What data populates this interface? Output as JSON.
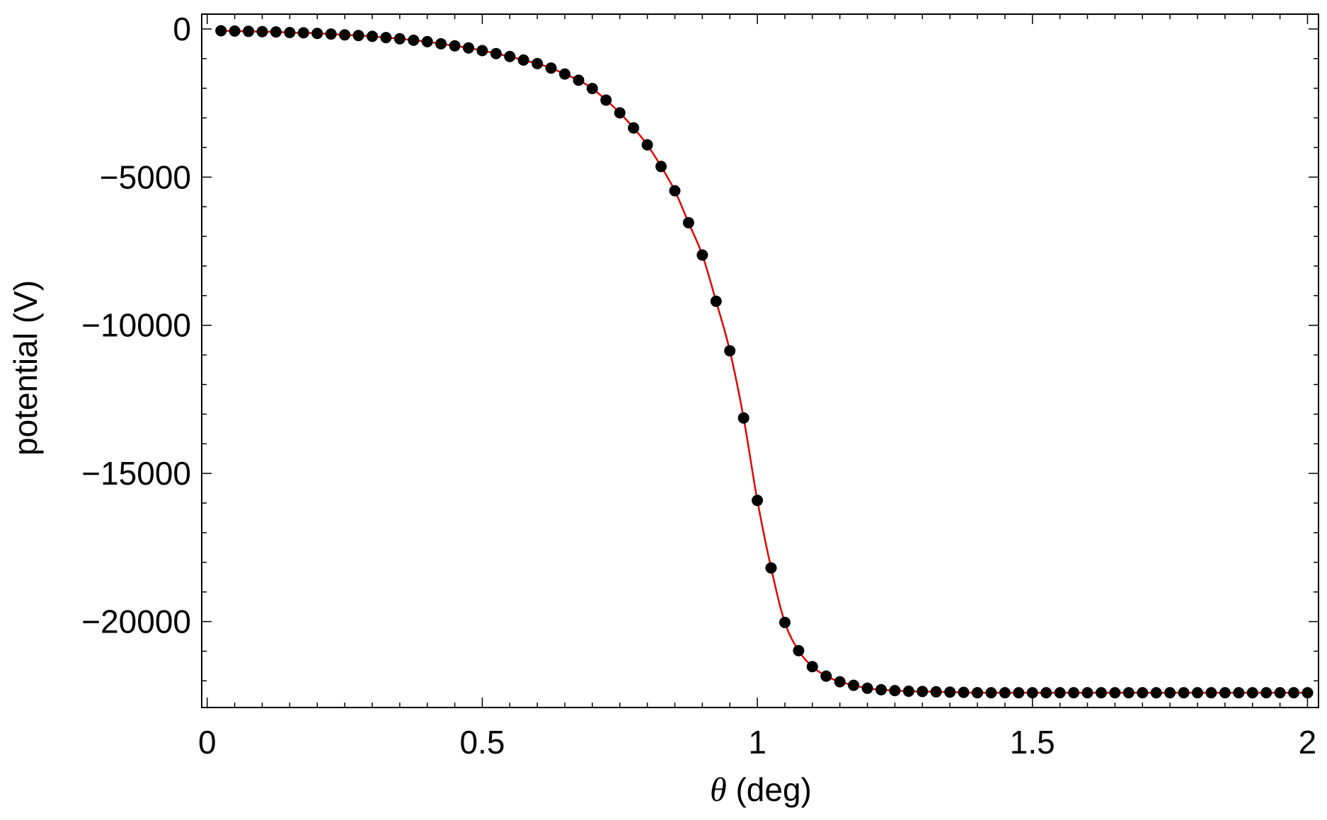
{
  "chart_data": {
    "type": "scatter",
    "xlabel_symbol": "θ",
    "xlabel_unit": " (deg)",
    "ylabel": "potential (V)",
    "xlim": [
      -0.01,
      2.02
    ],
    "ylim": [
      -22900,
      500
    ],
    "xticks": [
      0,
      0.5,
      1,
      1.5,
      2
    ],
    "xtick_labels": [
      "0",
      "0.5",
      "1",
      "1.5",
      "2"
    ],
    "yticks": [
      0,
      -5000,
      -10000,
      -15000,
      -20000
    ],
    "ytick_labels": [
      "0",
      "−5000",
      "−10000",
      "−15000",
      "−20000"
    ],
    "grid": false,
    "legend": "none",
    "series": [
      {
        "marker_color": "#000000",
        "line_color": "#e00000",
        "x": [
          0.025,
          0.05,
          0.075,
          0.1,
          0.125,
          0.15,
          0.175,
          0.2,
          0.225,
          0.25,
          0.275,
          0.3,
          0.325,
          0.35,
          0.375,
          0.4,
          0.425,
          0.45,
          0.475,
          0.5,
          0.525,
          0.55,
          0.575,
          0.6,
          0.625,
          0.65,
          0.675,
          0.7,
          0.725,
          0.75,
          0.775,
          0.8,
          0.825,
          0.85,
          0.875,
          0.9,
          0.925,
          0.95,
          0.975,
          1.0,
          1.025,
          1.05,
          1.075,
          1.1,
          1.125,
          1.15,
          1.175,
          1.2,
          1.225,
          1.25,
          1.275,
          1.3,
          1.325,
          1.35,
          1.375,
          1.4,
          1.425,
          1.45,
          1.475,
          1.5,
          1.525,
          1.55,
          1.575,
          1.6,
          1.625,
          1.65,
          1.675,
          1.7,
          1.725,
          1.75,
          1.775,
          1.8,
          1.825,
          1.85,
          1.875,
          1.9,
          1.925,
          1.95,
          1.975,
          2.0
        ],
        "y": [
          -60,
          -70,
          -80,
          -90,
          -100,
          -120,
          -130,
          -150,
          -170,
          -200,
          -220,
          -250,
          -290,
          -330,
          -380,
          -430,
          -500,
          -570,
          -640,
          -730,
          -830,
          -930,
          -1050,
          -1170,
          -1320,
          -1520,
          -1730,
          -2010,
          -2400,
          -2830,
          -3340,
          -3910,
          -4640,
          -5460,
          -6540,
          -7630,
          -9190,
          -10860,
          -13130,
          -15910,
          -18190,
          -20030,
          -20980,
          -21520,
          -21840,
          -22030,
          -22150,
          -22250,
          -22300,
          -22330,
          -22350,
          -22360,
          -22370,
          -22380,
          -22390,
          -22400,
          -22400,
          -22400,
          -22400,
          -22400,
          -22400,
          -22400,
          -22400,
          -22400,
          -22400,
          -22400,
          -22400,
          -22400,
          -22400,
          -22400,
          -22400,
          -22400,
          -22400,
          -22400,
          -22400,
          -22400,
          -22400,
          -22400,
          -22400,
          -22400
        ]
      }
    ]
  }
}
